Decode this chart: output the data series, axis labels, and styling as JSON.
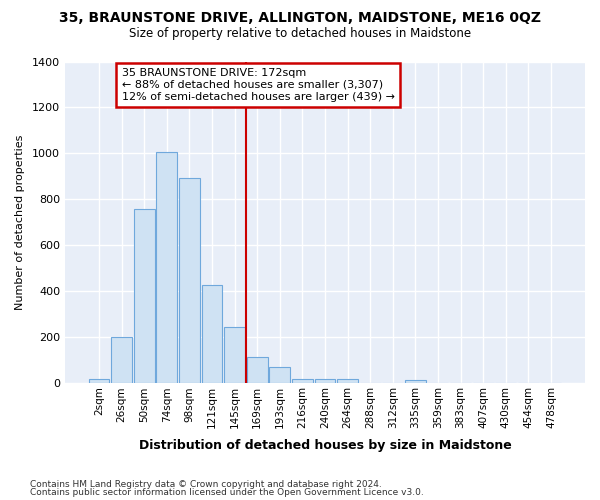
{
  "title": "35, BRAUNSTONE DRIVE, ALLINGTON, MAIDSTONE, ME16 0QZ",
  "subtitle": "Size of property relative to detached houses in Maidstone",
  "xlabel": "Distribution of detached houses by size in Maidstone",
  "ylabel": "Number of detached properties",
  "footer_line1": "Contains HM Land Registry data © Crown copyright and database right 2024.",
  "footer_line2": "Contains public sector information licensed under the Open Government Licence v3.0.",
  "bar_labels": [
    "2sqm",
    "26sqm",
    "50sqm",
    "74sqm",
    "98sqm",
    "121sqm",
    "145sqm",
    "169sqm",
    "193sqm",
    "216sqm",
    "240sqm",
    "264sqm",
    "288sqm",
    "312sqm",
    "335sqm",
    "359sqm",
    "383sqm",
    "407sqm",
    "430sqm",
    "454sqm",
    "478sqm"
  ],
  "bar_values": [
    20,
    200,
    760,
    1005,
    895,
    430,
    245,
    115,
    70,
    20,
    20,
    20,
    0,
    0,
    15,
    0,
    0,
    0,
    0,
    0,
    0
  ],
  "bar_color": "#cfe2f3",
  "bar_edge_color": "#6fa8dc",
  "bg_color": "#e8eef8",
  "grid_color": "#ffffff",
  "vline_index": 7,
  "vline_color": "#cc0000",
  "annotation_line1": "35 BRAUNSTONE DRIVE: 172sqm",
  "annotation_line2": "← 88% of detached houses are smaller (3,307)",
  "annotation_line3": "12% of semi-detached houses are larger (439) →",
  "annotation_box_edgecolor": "#cc0000",
  "annotation_box_facecolor": "#ffffff",
  "ylim": [
    0,
    1400
  ],
  "yticks": [
    0,
    200,
    400,
    600,
    800,
    1000,
    1200,
    1400
  ]
}
